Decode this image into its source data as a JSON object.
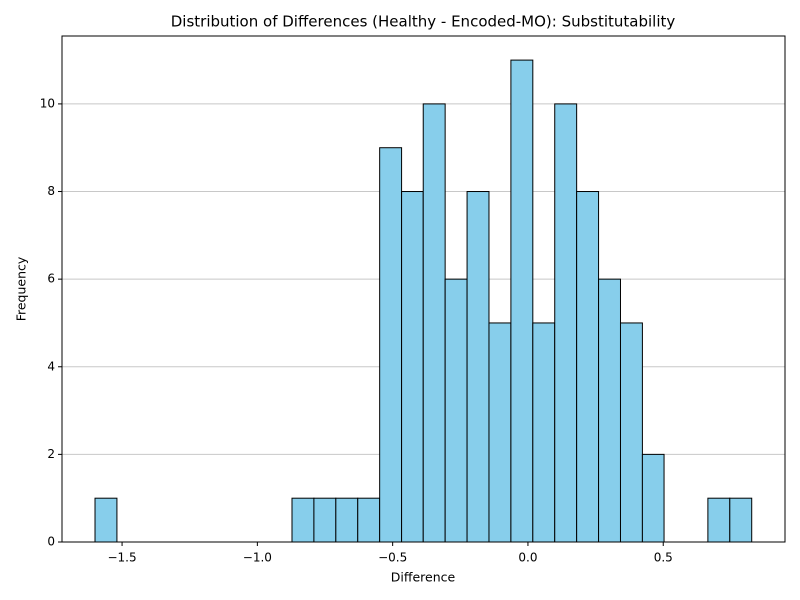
{
  "chart_data": {
    "type": "histogram",
    "title": "Distribution of Differences (Healthy - Encoded-MO): Substitutability",
    "x_label": "Difference",
    "y_label": "Frequency",
    "bins": [
      -1.6,
      -1.519,
      -1.438,
      -1.357,
      -1.276,
      -1.196,
      -1.115,
      -1.034,
      -0.953,
      -0.872,
      -0.791,
      -0.71,
      -0.629,
      -0.548,
      -0.467,
      -0.387,
      -0.306,
      -0.225,
      -0.144,
      -0.063,
      0.018,
      0.099,
      0.18,
      0.261,
      0.342,
      0.423,
      0.503,
      0.584,
      0.665,
      0.746,
      0.827
    ],
    "counts": [
      1,
      0,
      0,
      0,
      0,
      0,
      0,
      0,
      0,
      1,
      1,
      1,
      1,
      9,
      8,
      10,
      6,
      8,
      5,
      11,
      5,
      10,
      8,
      6,
      5,
      2,
      0,
      0,
      1,
      1
    ],
    "color": "#87ceeb",
    "edgecolor": "#000000",
    "xlim": [
      -1.722,
      0.95
    ],
    "ylim": [
      0,
      11.55
    ],
    "xticks": [
      {
        "value": -1.5,
        "label": "−1.5"
      },
      {
        "value": -1.0,
        "label": "−1.0"
      },
      {
        "value": -0.5,
        "label": "−0.5"
      },
      {
        "value": 0.0,
        "label": "0.0"
      },
      0.5
    ],
    "yticks": [
      0,
      2,
      4,
      6,
      8,
      10
    ],
    "grid": "y"
  }
}
